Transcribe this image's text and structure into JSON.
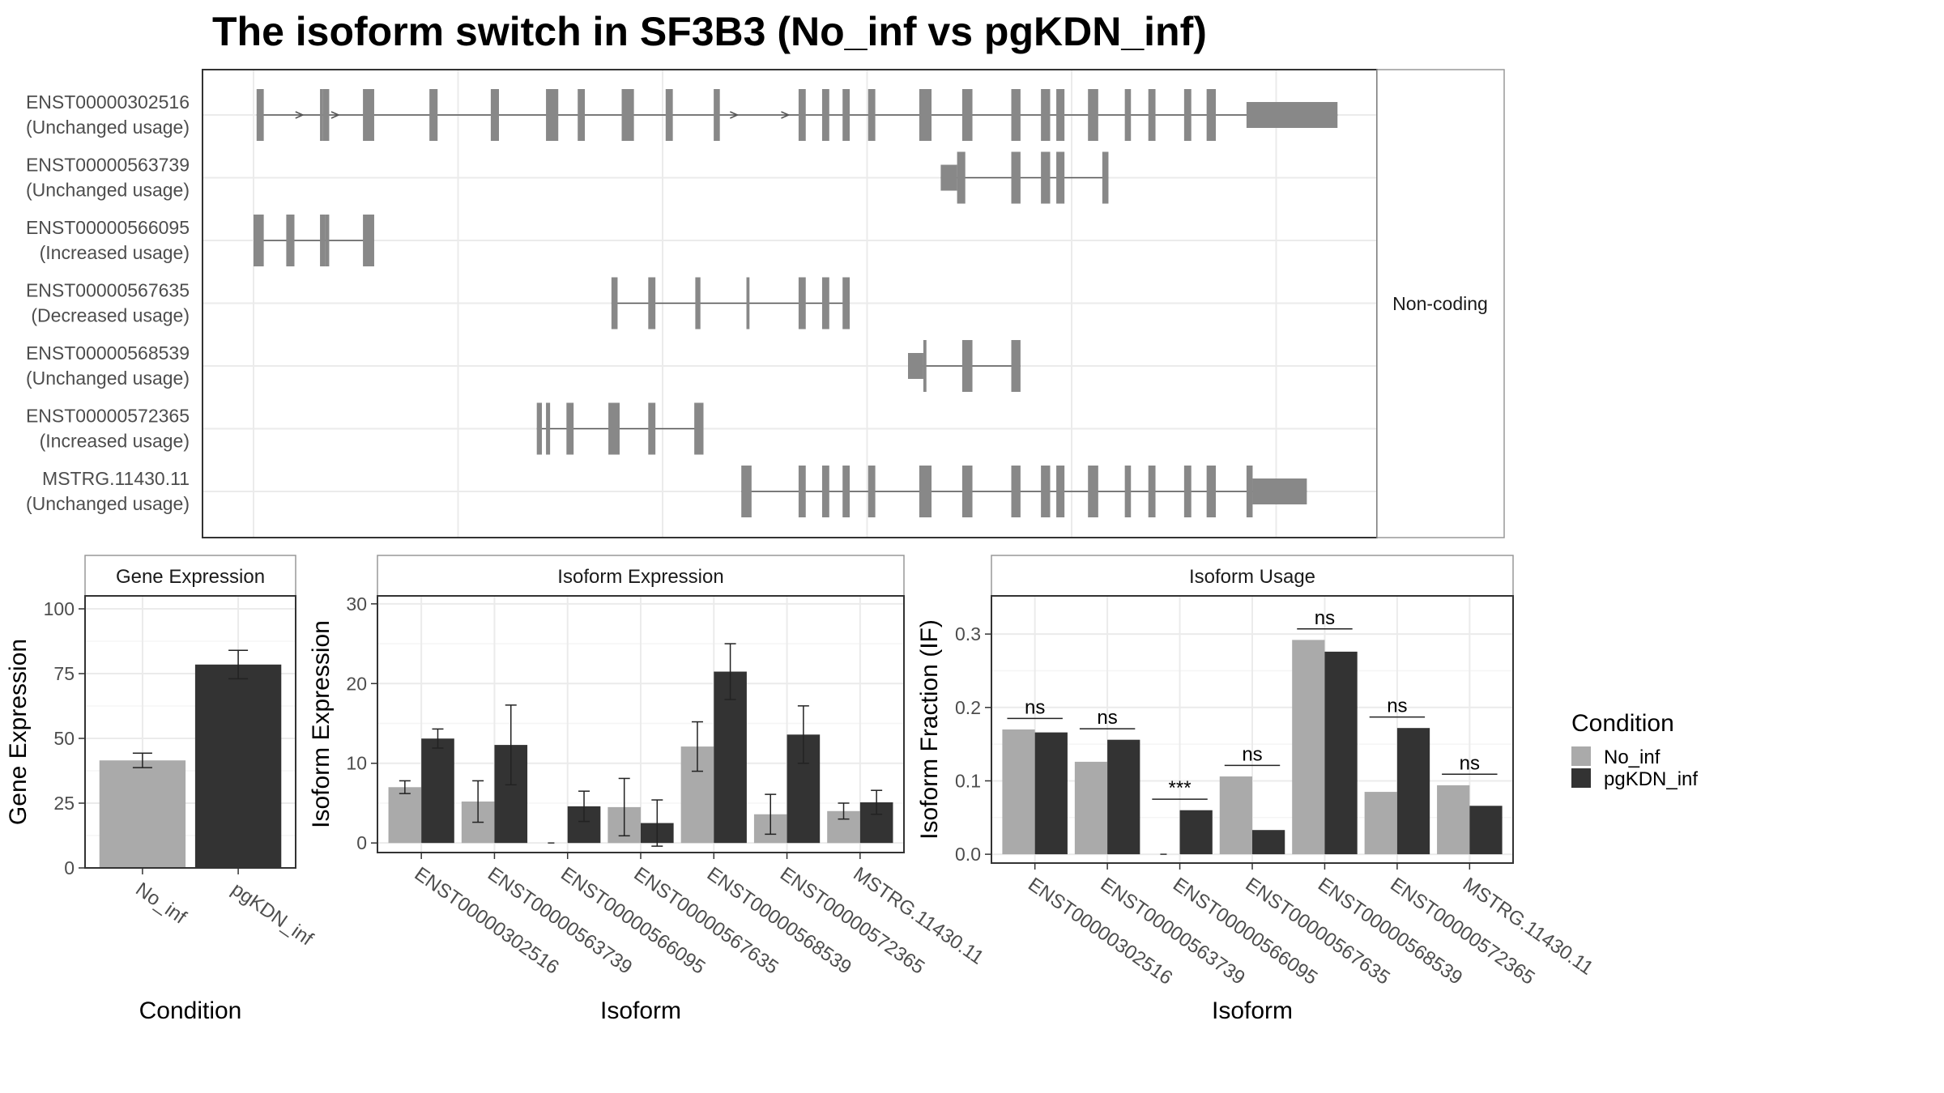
{
  "title": "The isoform switch in SF3B3 (No_inf vs pgKDN_inf)",
  "colors": {
    "no_inf": "#aaaaaa",
    "pgkdn_inf": "#333333",
    "exon": "#888888",
    "grid": "#ebebeb",
    "border": "#333333",
    "strip_border": "#999999"
  },
  "chart_data": [
    {
      "type": "gene-structure",
      "facet_label": "Non-coding",
      "coordinate_range": [
        0,
        1000
      ],
      "transcripts": [
        {
          "name": "ENST00000302516",
          "status": "(Unchanged usage)",
          "exons": [
            [
              3,
              10
            ],
            [
              65,
              68
            ],
            [
              68,
              74
            ],
            [
              107,
              118
            ],
            [
              172,
              180
            ],
            [
              232,
              240
            ],
            [
              286,
              298
            ],
            [
              317,
              324
            ],
            [
              360,
              372
            ],
            [
              403,
              410
            ],
            [
              450,
              456
            ],
            [
              533,
              540
            ],
            [
              556,
              563
            ],
            [
              576,
              583
            ],
            [
              601,
              608
            ],
            [
              651,
              663
            ],
            [
              693,
              703
            ],
            [
              741,
              750
            ],
            [
              770,
              779
            ],
            [
              785,
              793
            ],
            [
              816,
              826
            ],
            [
              852,
              858
            ],
            [
              875,
              882
            ],
            [
              910,
              917
            ],
            [
              932,
              941
            ],
            [
              971,
              1060
            ]
          ],
          "arrows": [
            45,
            80,
            470,
            520
          ]
        },
        {
          "name": "ENST00000563739",
          "status": "(Unchanged usage)",
          "exons": [
            [
              672,
              688
            ],
            [
              688,
              696
            ],
            [
              741,
              750
            ],
            [
              770,
              779
            ],
            [
              785,
              793
            ],
            [
              830,
              836
            ]
          ],
          "arrows": []
        },
        {
          "name": "ENST00000566095",
          "status": "(Increased usage)",
          "exons": [
            [
              0,
              10
            ],
            [
              32,
              40
            ],
            [
              65,
              70
            ],
            [
              70,
              74
            ],
            [
              107,
              118
            ]
          ],
          "arrows": []
        },
        {
          "name": "ENST00000567635",
          "status": "(Decreased usage)",
          "exons": [
            [
              350,
              356
            ],
            [
              386,
              393
            ],
            [
              432,
              437
            ],
            [
              482,
              485
            ],
            [
              533,
              540
            ],
            [
              556,
              563
            ],
            [
              576,
              583
            ]
          ],
          "arrows": []
        },
        {
          "name": "ENST00000568539",
          "status": "(Unchanged usage)",
          "exons": [
            [
              640,
              655
            ],
            [
              655,
              658
            ],
            [
              693,
              703
            ],
            [
              741,
              750
            ]
          ],
          "arrows": []
        },
        {
          "name": "ENST00000572365",
          "status": "(Increased usage)",
          "exons": [
            [
              277,
              282
            ],
            [
              286,
              290
            ],
            [
              306,
              313
            ],
            [
              347,
              358
            ],
            [
              386,
              393
            ],
            [
              431,
              440
            ]
          ],
          "arrows": []
        },
        {
          "name": "MSTRG.11430.11",
          "status": "(Unchanged usage)",
          "exons": [
            [
              477,
              480
            ],
            [
              480,
              487
            ],
            [
              533,
              540
            ],
            [
              556,
              563
            ],
            [
              576,
              583
            ],
            [
              601,
              608
            ],
            [
              651,
              663
            ],
            [
              693,
              703
            ],
            [
              741,
              750
            ],
            [
              770,
              779
            ],
            [
              785,
              793
            ],
            [
              816,
              826
            ],
            [
              852,
              858
            ],
            [
              875,
              882
            ],
            [
              910,
              917
            ],
            [
              932,
              941
            ],
            [
              971,
              977
            ],
            [
              977,
              1030
            ]
          ],
          "arrows": []
        }
      ]
    },
    {
      "type": "bar",
      "title": "Gene Expression",
      "xlabel": "Condition",
      "ylabel": "Gene Expression",
      "ylim": [
        0,
        105
      ],
      "yticks": [
        "0",
        "25",
        "50",
        "75",
        "100"
      ],
      "categories": [
        "No_inf",
        "pgKDN_inf"
      ],
      "values": [
        41.5,
        78.5
      ],
      "errors": [
        2.8,
        5.5
      ]
    },
    {
      "type": "bar",
      "title": "Isoform Expression",
      "xlabel": "Isoform",
      "ylabel": "Isoform Expression",
      "ylim": [
        -1.2,
        31
      ],
      "yticks": [
        "0",
        "10",
        "20",
        "30"
      ],
      "categories": [
        "ENST00000302516",
        "ENST00000563739",
        "ENST00000566095",
        "ENST00000567635",
        "ENST00000568539",
        "ENST00000572365",
        "MSTRG.11430.11"
      ],
      "series": [
        {
          "name": "No_inf",
          "values": [
            7.0,
            5.2,
            0.0,
            4.5,
            12.1,
            3.6,
            4.0
          ],
          "errors": [
            0.8,
            2.6,
            0.0,
            3.6,
            3.1,
            2.5,
            1.0
          ]
        },
        {
          "name": "pgKDN_inf",
          "values": [
            13.1,
            12.3,
            4.6,
            2.5,
            21.5,
            13.6,
            5.1
          ],
          "errors": [
            1.2,
            5.0,
            1.9,
            2.9,
            3.5,
            3.6,
            1.5
          ]
        }
      ]
    },
    {
      "type": "bar",
      "title": "Isoform Usage",
      "xlabel": "Isoform",
      "ylabel": "Isoform Fraction (IF)",
      "ylim": [
        -0.012,
        0.352
      ],
      "yticks": [
        "0.0",
        "0.1",
        "0.2",
        "0.3"
      ],
      "categories": [
        "ENST00000302516",
        "ENST00000563739",
        "ENST00000566095",
        "ENST00000567635",
        "ENST00000568539",
        "ENST00000572365",
        "MSTRG.11430.11"
      ],
      "series": [
        {
          "name": "No_inf",
          "values": [
            0.17,
            0.126,
            0.0,
            0.106,
            0.292,
            0.085,
            0.094
          ]
        },
        {
          "name": "pgKDN_inf",
          "values": [
            0.166,
            0.156,
            0.06,
            0.033,
            0.276,
            0.172,
            0.066
          ]
        }
      ],
      "annotations": [
        {
          "label": "ns",
          "value": 0.185
        },
        {
          "label": "ns",
          "value": 0.171
        },
        {
          "label": "***",
          "value": 0.075
        },
        {
          "label": "ns",
          "value": 0.121
        },
        {
          "label": "ns",
          "value": 0.307
        },
        {
          "label": "ns",
          "value": 0.187
        },
        {
          "label": "ns",
          "value": 0.109
        }
      ]
    }
  ],
  "legend": {
    "title": "Condition",
    "items": [
      {
        "label": "No_inf",
        "color": "#aaaaaa"
      },
      {
        "label": "pgKDN_inf",
        "color": "#333333"
      }
    ]
  }
}
